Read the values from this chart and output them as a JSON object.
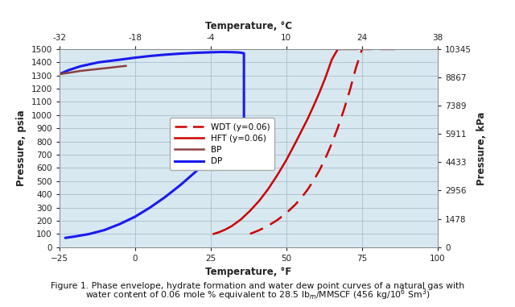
{
  "title_top": "Temperature, °C",
  "xlabel": "Temperature, °F",
  "ylabel_left": "Pressure, psia",
  "ylabel_right": "Pressure, kPa",
  "xlim": [
    -25,
    100
  ],
  "ylim_left": [
    0,
    1500
  ],
  "ylim_right": [
    0,
    10345
  ],
  "xticks_bottom": [
    -25,
    0,
    25,
    50,
    75,
    100
  ],
  "xticks_top": [
    -32,
    -18,
    -4,
    10,
    24,
    38
  ],
  "yticks_left": [
    0,
    100,
    200,
    300,
    400,
    500,
    600,
    700,
    800,
    900,
    1000,
    1100,
    1200,
    1300,
    1400,
    1500
  ],
  "yticks_right": [
    0,
    1478,
    2956,
    4433,
    5911,
    7389,
    8867,
    10345
  ],
  "grid_color": "#a8bfcc",
  "background_color": "#d8e8f0",
  "line_colors": {
    "WDT": "#cc0000",
    "HFT": "#cc0000",
    "BP": "#8b4040",
    "DP": "#1a1aee"
  },
  "legend_labels": [
    "WDT (y=0.06)",
    "HFT (y=0.06)",
    "BP",
    "DP"
  ],
  "DP_upper_x": [
    -25,
    -22,
    -18,
    -12,
    -5,
    0,
    5,
    10,
    15,
    20,
    25,
    28,
    30,
    32,
    33,
    34,
    35,
    35.5,
    36
  ],
  "DP_upper_y": [
    1310,
    1340,
    1370,
    1400,
    1420,
    1435,
    1448,
    1458,
    1466,
    1472,
    1476,
    1478,
    1478,
    1477,
    1476,
    1475,
    1473,
    1471,
    1468
  ],
  "DP_lower_x": [
    -23,
    -20,
    -15,
    -10,
    -5,
    0,
    5,
    10,
    15,
    20,
    25,
    28,
    30,
    32,
    33,
    34,
    35,
    35.5,
    36
  ],
  "DP_lower_y": [
    70,
    80,
    100,
    130,
    175,
    230,
    300,
    380,
    470,
    570,
    680,
    750,
    800,
    850,
    880,
    910,
    940,
    960,
    980
  ],
  "BP_x": [
    -25,
    -22,
    -18,
    -12,
    -8,
    -5,
    -3
  ],
  "BP_y": [
    1310,
    1320,
    1335,
    1350,
    1360,
    1368,
    1373
  ],
  "HFT_x": [
    26,
    28,
    30,
    32,
    35,
    38,
    41,
    44,
    47,
    50,
    53,
    55,
    57,
    59,
    61,
    63,
    65,
    67,
    69,
    71,
    73
  ],
  "HFT_y": [
    100,
    115,
    135,
    160,
    210,
    275,
    350,
    440,
    545,
    660,
    790,
    880,
    970,
    1070,
    1175,
    1290,
    1420,
    1500,
    1500,
    1500,
    1500
  ],
  "WDT_x": [
    38,
    41,
    44,
    47,
    50,
    53,
    55,
    57,
    59,
    61,
    63,
    65,
    67,
    69,
    71,
    73,
    75,
    77,
    79,
    81,
    83,
    85,
    87
  ],
  "WDT_y": [
    100,
    128,
    162,
    205,
    258,
    323,
    375,
    435,
    505,
    585,
    678,
    785,
    905,
    1040,
    1190,
    1360,
    1500,
    1500,
    1500,
    1500,
    1500,
    1500,
    1500
  ]
}
